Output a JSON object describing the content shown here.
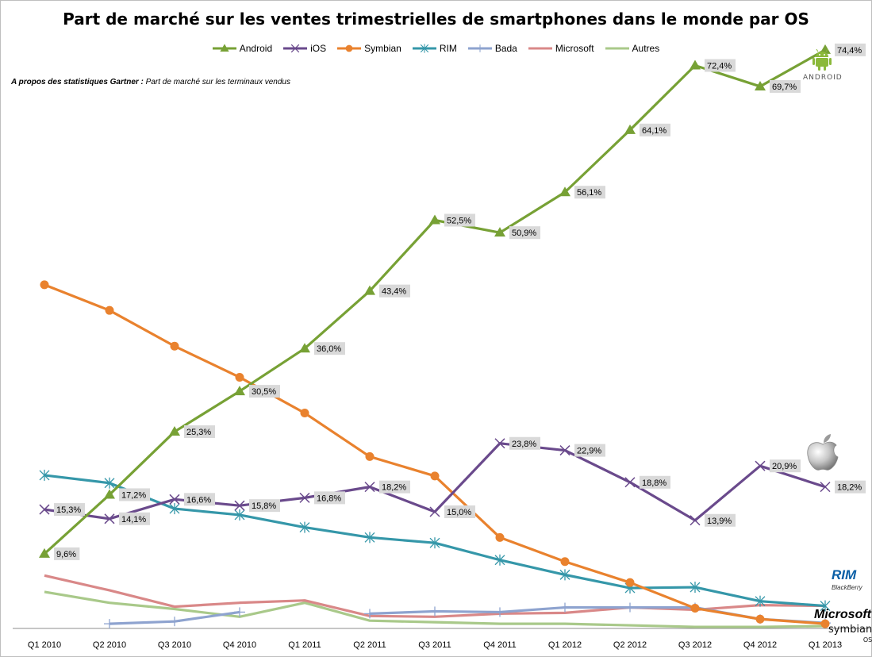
{
  "chart_data": {
    "type": "line",
    "title": "Part de marché sur les ventes trimestrielles de smartphones dans le monde par OS",
    "note_bold": "A propos des statistiques Gartner :",
    "note_text": " Part de marché sur les terminaux vendus",
    "categories": [
      "Q1 2010",
      "Q2 2010",
      "Q3 2010",
      "Q4 2010",
      "Q1 2011",
      "Q2 2011",
      "Q3 2011",
      "Q4 2011",
      "Q1 2012",
      "Q2 2012",
      "Q3 2012",
      "Q4 2012",
      "Q1 2013"
    ],
    "ylim": [
      0,
      80
    ],
    "grid": false,
    "legend_position": "top",
    "series": [
      {
        "name": "Android",
        "color": "#77a135",
        "marker": "triangle",
        "values": [
          9.6,
          17.2,
          25.3,
          30.5,
          36.0,
          43.4,
          52.5,
          50.9,
          56.1,
          64.1,
          72.4,
          69.7,
          74.4
        ],
        "labels": [
          "9,6%",
          "17,2%",
          "25,3%",
          "30,5%",
          "36,0%",
          "43,4%",
          "52,5%",
          "50,9%",
          "56,1%",
          "64,1%",
          "72,4%",
          "69,7%",
          "74,4%"
        ]
      },
      {
        "name": "iOS",
        "color": "#6a4a8c",
        "marker": "x",
        "values": [
          15.3,
          14.1,
          16.6,
          15.8,
          16.8,
          18.2,
          15.0,
          23.8,
          22.9,
          18.8,
          13.9,
          20.9,
          18.2
        ],
        "labels": [
          "15,3%",
          "14,1%",
          "16,6%",
          "15,8%",
          "16,8%",
          "18,2%",
          "15,0%",
          "23,8%",
          "22,9%",
          "18,8%",
          "13,9%",
          "20,9%",
          "18,2%"
        ]
      },
      {
        "name": "Symbian",
        "color": "#e9822e",
        "marker": "circle",
        "values": [
          44.2,
          40.9,
          36.3,
          32.3,
          27.7,
          22.1,
          19.6,
          11.7,
          8.6,
          5.9,
          2.6,
          1.2,
          0.6
        ]
      },
      {
        "name": "RIM",
        "color": "#3597a9",
        "marker": "star",
        "values": [
          19.7,
          18.7,
          15.4,
          14.6,
          13.0,
          11.7,
          11.0,
          8.8,
          6.9,
          5.2,
          5.3,
          3.5,
          2.9
        ]
      },
      {
        "name": "Bada",
        "color": "#8ea3cf",
        "marker": "plus",
        "values": [
          null,
          0.6,
          0.9,
          2.1,
          null,
          1.9,
          2.2,
          2.1,
          2.7,
          2.7,
          2.7,
          1.2,
          0.7
        ]
      },
      {
        "name": "Microsoft",
        "color": "#d98888",
        "marker": "none",
        "values": [
          6.8,
          4.9,
          2.8,
          3.3,
          3.6,
          1.6,
          1.5,
          1.9,
          2.0,
          2.7,
          2.4,
          3.0,
          2.9
        ]
      },
      {
        "name": "Autres",
        "color": "#a9c98a",
        "marker": "none",
        "values": [
          4.7,
          3.3,
          2.5,
          1.5,
          3.3,
          1.0,
          0.8,
          0.6,
          0.6,
          0.4,
          0.2,
          0.2,
          0.3
        ]
      }
    ]
  },
  "logos": {
    "android": "ANDROID",
    "rim": "RIM",
    "rim_sub": "BlackBerry",
    "microsoft": "Microsoft",
    "symbian": "symbian",
    "symbian_sub": "OS"
  }
}
